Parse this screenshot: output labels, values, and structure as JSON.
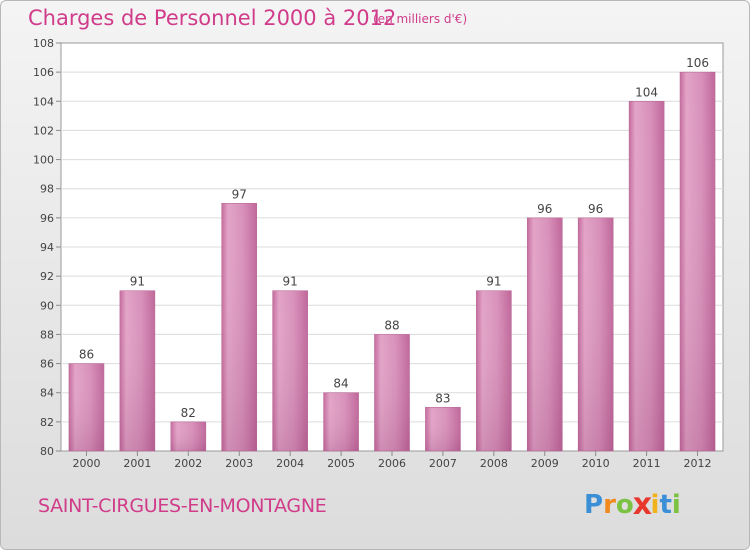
{
  "chart_data": {
    "type": "bar",
    "title": "Charges de Personnel 2000 à 2012",
    "subtitle": "(en milliers d'€)",
    "categories": [
      "2000",
      "2001",
      "2002",
      "2003",
      "2004",
      "2005",
      "2006",
      "2007",
      "2008",
      "2009",
      "2010",
      "2011",
      "2012"
    ],
    "values": [
      86,
      91,
      82,
      97,
      91,
      84,
      88,
      83,
      91,
      96,
      96,
      104,
      106
    ],
    "ylim": [
      80,
      108
    ],
    "yticks": [
      "80",
      "82",
      "84",
      "86",
      "88",
      "90",
      "92",
      "94",
      "96",
      "98",
      "100",
      "102",
      "104",
      "106",
      "108"
    ],
    "grid": true,
    "bar_color": "#d488b4",
    "xlabel": "",
    "ylabel": ""
  },
  "commune": "SAINT-CIRGUES-EN-MONTAGNE",
  "logo": {
    "letters": [
      "P",
      "r",
      "o",
      "x",
      "i",
      "t",
      "i"
    ],
    "colors": [
      "#3a8fd6",
      "#f08a1c",
      "#7cc242",
      "#e8382e",
      "#f0b31c",
      "#3a8fd6",
      "#7cc242"
    ]
  }
}
